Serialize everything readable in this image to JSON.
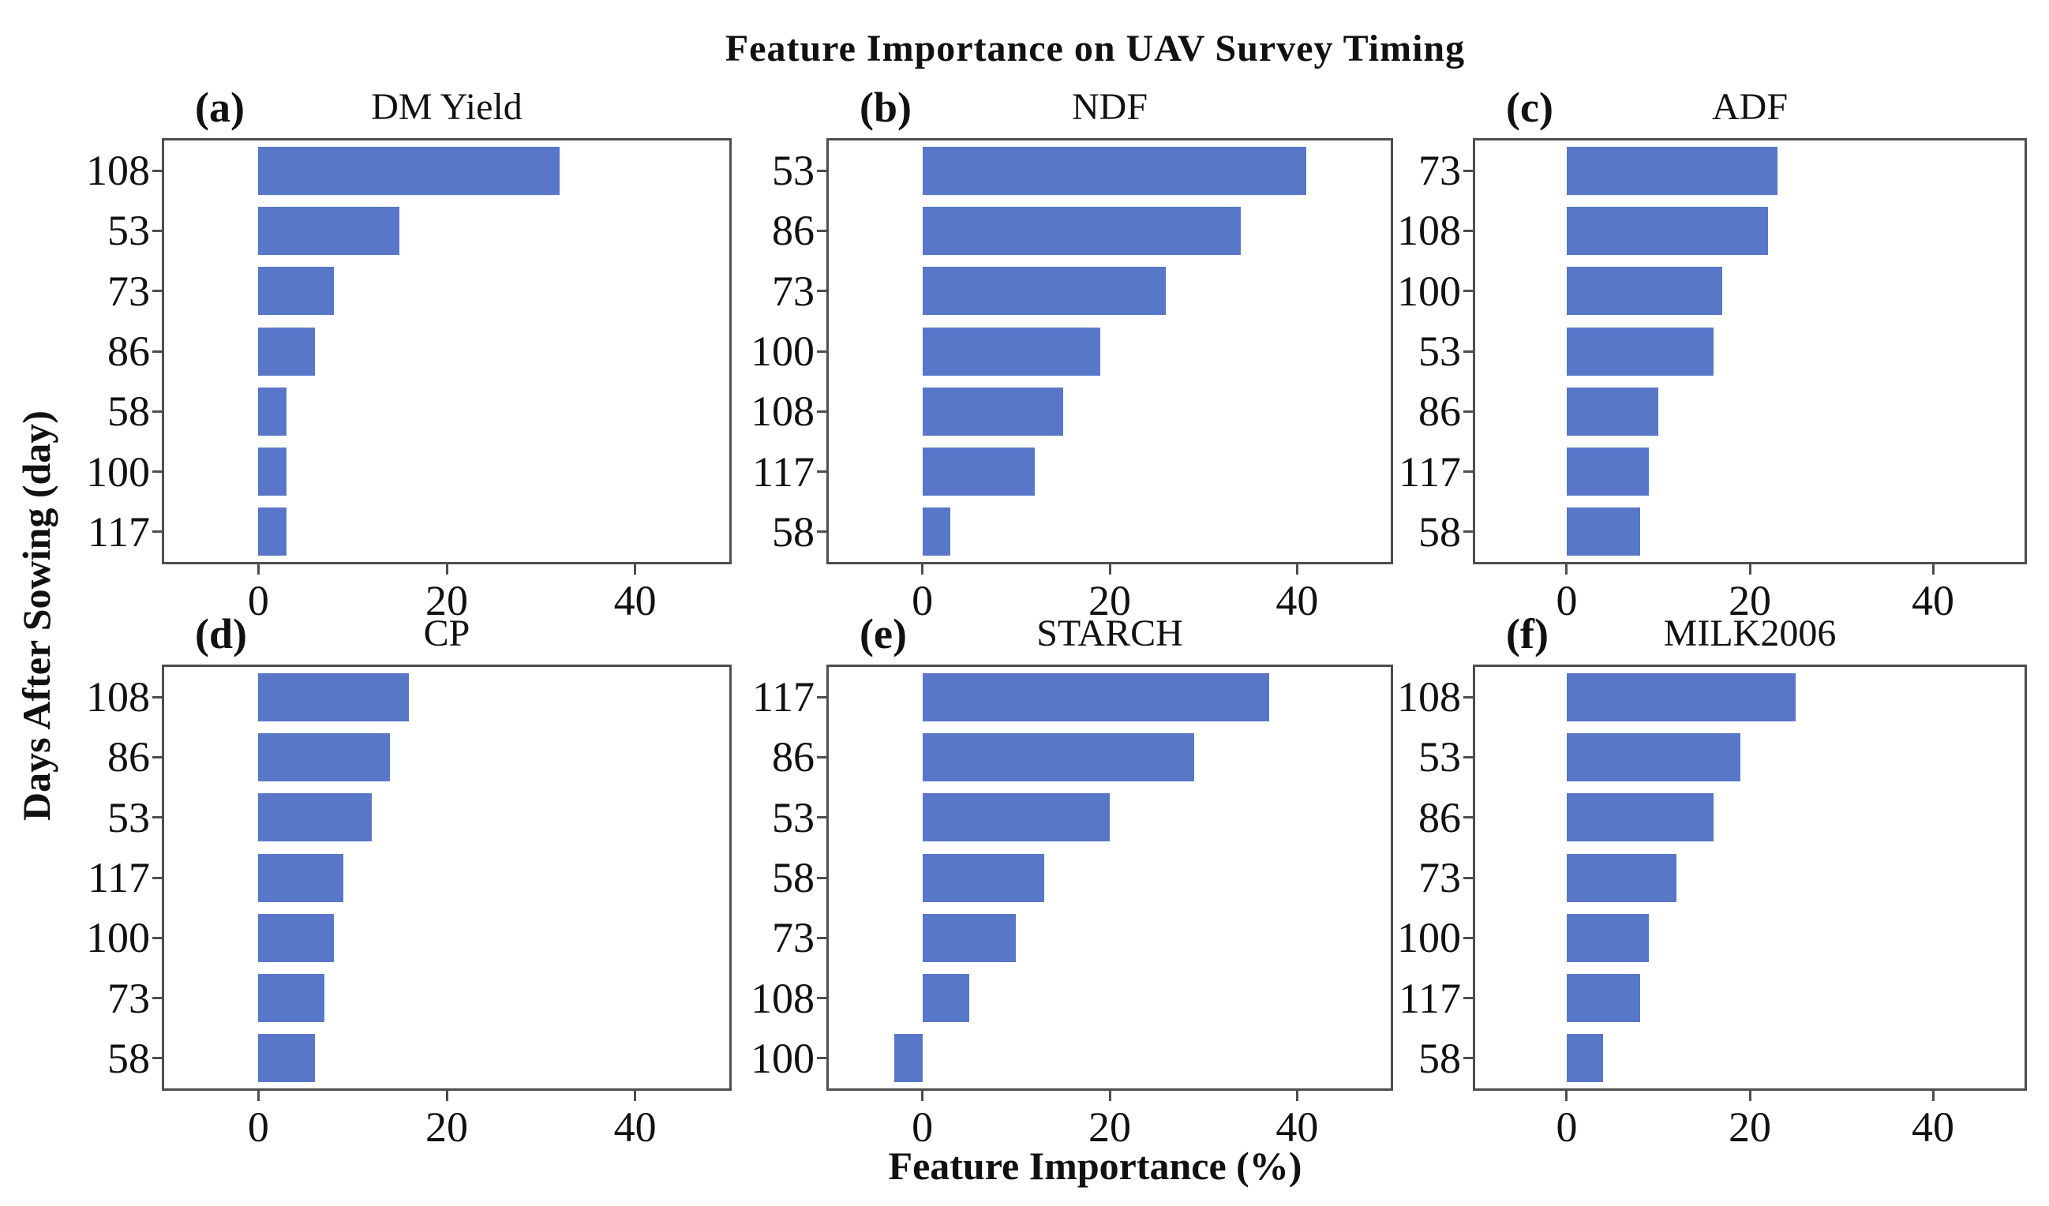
{
  "figure": {
    "title": "Feature Importance on UAV Survey Timing",
    "xlabel": "Feature Importance (%)",
    "ylabel": "Days After Sowing (day)"
  },
  "colors": {
    "bar": "#5877c8",
    "axis": "#4e4e4e",
    "text": "#111111"
  },
  "chart_data": [
    {
      "type": "bar",
      "orientation": "horizontal",
      "panel": "(a)",
      "title": "DM Yield",
      "categories": [
        "108",
        "53",
        "73",
        "86",
        "58",
        "100",
        "117"
      ],
      "values": [
        32,
        15,
        8,
        6,
        3,
        3,
        3
      ],
      "xticks": [
        0,
        20,
        40
      ],
      "xlim": [
        -10,
        50
      ],
      "grid": false
    },
    {
      "type": "bar",
      "orientation": "horizontal",
      "panel": "(b)",
      "title": "NDF",
      "categories": [
        "53",
        "86",
        "73",
        "100",
        "108",
        "117",
        "58"
      ],
      "values": [
        41,
        34,
        26,
        19,
        15,
        12,
        3
      ],
      "xticks": [
        0,
        20,
        40
      ],
      "xlim": [
        -10,
        50
      ],
      "grid": false
    },
    {
      "type": "bar",
      "orientation": "horizontal",
      "panel": "(c)",
      "title": "ADF",
      "categories": [
        "73",
        "108",
        "100",
        "53",
        "86",
        "117",
        "58"
      ],
      "values": [
        23,
        22,
        17,
        16,
        10,
        9,
        8
      ],
      "xticks": [
        0,
        20,
        40
      ],
      "xlim": [
        -10,
        50
      ],
      "grid": false
    },
    {
      "type": "bar",
      "orientation": "horizontal",
      "panel": "(d)",
      "title": "CP",
      "categories": [
        "108",
        "86",
        "53",
        "117",
        "100",
        "73",
        "58"
      ],
      "values": [
        16,
        14,
        12,
        9,
        8,
        7,
        6
      ],
      "xticks": [
        0,
        20,
        40
      ],
      "xlim": [
        -10,
        50
      ],
      "grid": false
    },
    {
      "type": "bar",
      "orientation": "horizontal",
      "panel": "(e)",
      "title": "STARCH",
      "categories": [
        "117",
        "86",
        "53",
        "58",
        "73",
        "108",
        "100"
      ],
      "values": [
        37,
        29,
        20,
        13,
        10,
        5,
        -3
      ],
      "xticks": [
        0,
        20,
        40
      ],
      "xlim": [
        -10,
        50
      ],
      "grid": false
    },
    {
      "type": "bar",
      "orientation": "horizontal",
      "panel": "(f)",
      "title": "MILK2006",
      "categories": [
        "108",
        "53",
        "86",
        "73",
        "100",
        "117",
        "58"
      ],
      "values": [
        25,
        19,
        16,
        12,
        9,
        8,
        4
      ],
      "xticks": [
        0,
        20,
        40
      ],
      "xlim": [
        -10,
        50
      ],
      "grid": false
    }
  ]
}
